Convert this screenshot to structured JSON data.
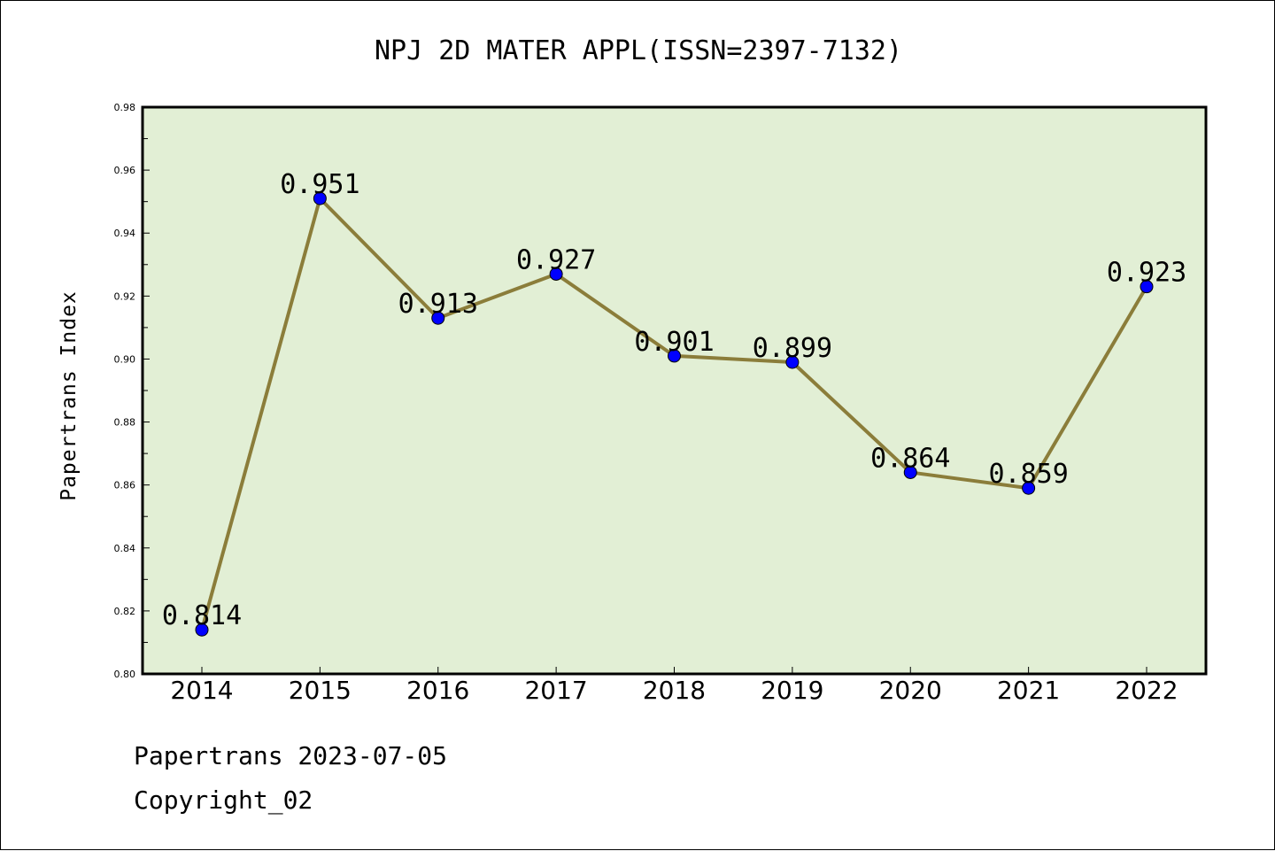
{
  "chart_data": {
    "type": "line",
    "title": "NPJ 2D MATER APPL(ISSN=2397-7132)",
    "xlabel": "",
    "ylabel": "Papertrans Index",
    "categories": [
      "2014",
      "2015",
      "2016",
      "2017",
      "2018",
      "2019",
      "2020",
      "2021",
      "2022"
    ],
    "series": [
      {
        "values": [
          0.814,
          0.951,
          0.913,
          0.927,
          0.901,
          0.899,
          0.864,
          0.859,
          0.923
        ],
        "labels": [
          "0.814",
          "0.951",
          "0.913",
          "0.927",
          "0.901",
          "0.899",
          "0.864",
          "0.859",
          "0.923"
        ]
      }
    ],
    "ylim": [
      0.8,
      0.98
    ],
    "yticks": [
      "0.80",
      "0.82",
      "0.84",
      "0.86",
      "0.88",
      "0.90",
      "0.92",
      "0.94",
      "0.96",
      "0.98"
    ],
    "grid": false,
    "colors": {
      "plot_background": "#e2efd5",
      "line": "#8b7d3a",
      "marker": "#0000ff"
    }
  },
  "footer": {
    "line1": "Papertrans 2023-07-05",
    "line2": "Copyright_02"
  }
}
